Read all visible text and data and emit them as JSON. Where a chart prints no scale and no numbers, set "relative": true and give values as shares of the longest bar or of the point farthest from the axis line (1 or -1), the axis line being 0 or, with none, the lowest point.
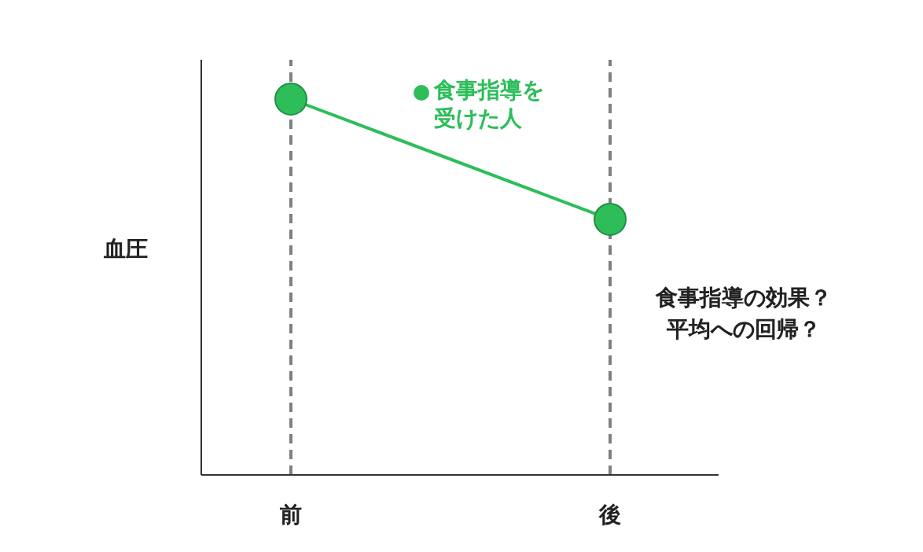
{
  "chart_data": {
    "type": "line",
    "categories": [
      "前",
      "後"
    ],
    "relative": true,
    "series": [
      {
        "name": "食事指導を受けた人",
        "color": "#2dbe5a",
        "values": [
          1,
          0.68
        ]
      }
    ],
    "ylabel": "血圧",
    "marker": "circle",
    "legend": "top",
    "grid": "x",
    "annotations": [
      "食事指導の効果？平均への回帰？"
    ]
  }
}
